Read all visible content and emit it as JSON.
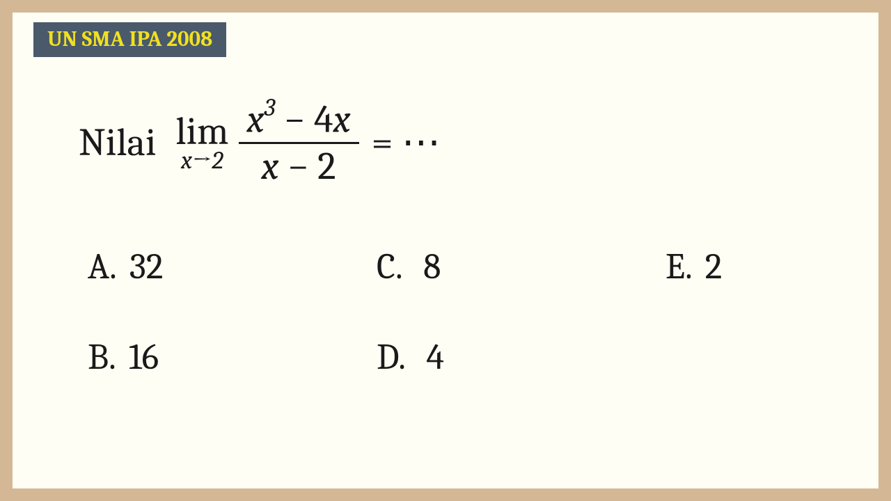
{
  "badge": {
    "text": "UN SMA IPA 2008"
  },
  "question": {
    "prefix": "Nilai",
    "lim_label": "lim",
    "lim_var": "x",
    "lim_arrow": "→",
    "lim_to": "2",
    "numerator_x": "x",
    "numerator_exp": "3",
    "numerator_minus": " − 4",
    "numerator_x2": "x",
    "denominator_x": "x",
    "denominator_rest": " − 2",
    "tail": " = ⋯"
  },
  "options": {
    "A": {
      "letter": "A.",
      "value": "32"
    },
    "B": {
      "letter": "B.",
      "value": "16"
    },
    "C": {
      "letter": "C.",
      "value": "8"
    },
    "D": {
      "letter": "D.",
      "value": "4"
    },
    "E": {
      "letter": "E.",
      "value": "2"
    }
  },
  "colors": {
    "border": "#d4b896",
    "background": "#fffef5",
    "badge_bg": "#4a5a6a",
    "badge_text": "#f0e020",
    "text": "#1a1a1a"
  }
}
